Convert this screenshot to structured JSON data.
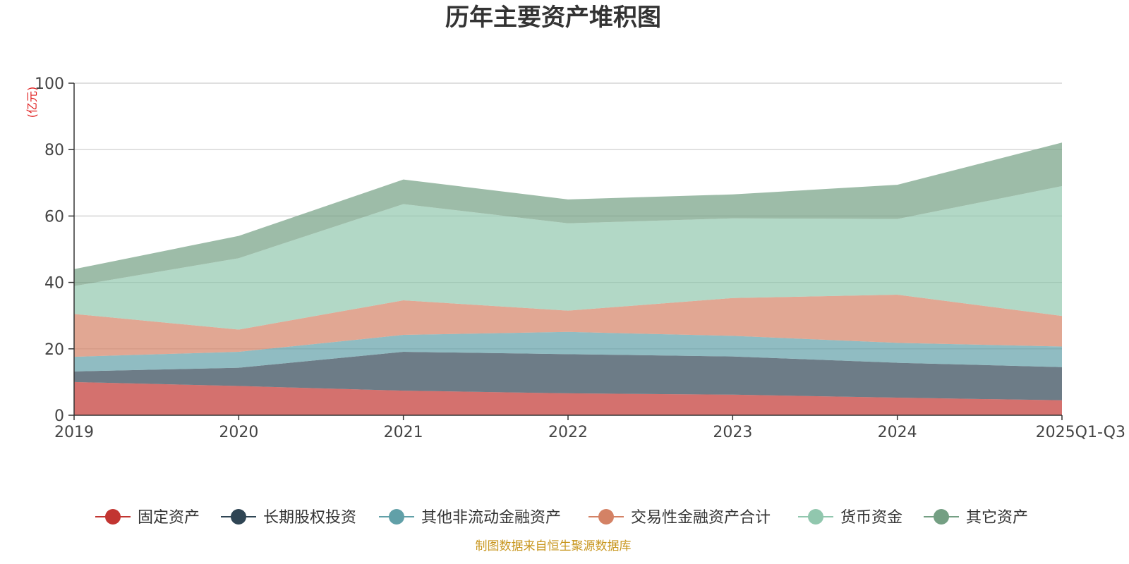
{
  "chart_data": {
    "type": "area",
    "stacked": true,
    "title": "历年主要资产堆积图",
    "y_unit": "(亿元)",
    "categories": [
      "2019",
      "2020",
      "2021",
      "2022",
      "2023",
      "2024",
      "2025Q1-Q3"
    ],
    "ylim": [
      0,
      100
    ],
    "yticks": [
      0,
      20,
      40,
      60,
      80,
      100
    ],
    "grid": true,
    "legend_position": "bottom",
    "series": [
      {
        "name": "固定资产",
        "color": "#c23531",
        "values": [
          10.0,
          8.8,
          7.4,
          6.6,
          6.2,
          5.3,
          4.5
        ]
      },
      {
        "name": "长期股权投资",
        "color": "#2f4554",
        "values": [
          3.2,
          5.5,
          11.7,
          11.8,
          11.5,
          10.5,
          10.0
        ]
      },
      {
        "name": "其他非流动金融资产",
        "color": "#61a0a8",
        "values": [
          4.4,
          4.8,
          5.1,
          6.7,
          6.2,
          6.0,
          6.2
        ]
      },
      {
        "name": "交易性金融资产合计",
        "color": "#d48265",
        "values": [
          12.9,
          6.7,
          10.4,
          6.4,
          11.4,
          14.5,
          9.2
        ]
      },
      {
        "name": "货币资金",
        "color": "#91c7ae",
        "values": [
          8.4,
          21.5,
          29.0,
          26.3,
          24.0,
          22.8,
          39.1
        ]
      },
      {
        "name": "其它资产",
        "color": "#749f83",
        "values": [
          5.1,
          6.7,
          7.4,
          7.2,
          7.2,
          10.3,
          13.1
        ]
      }
    ],
    "source_note": "制图数据来自恒生聚源数据库"
  }
}
